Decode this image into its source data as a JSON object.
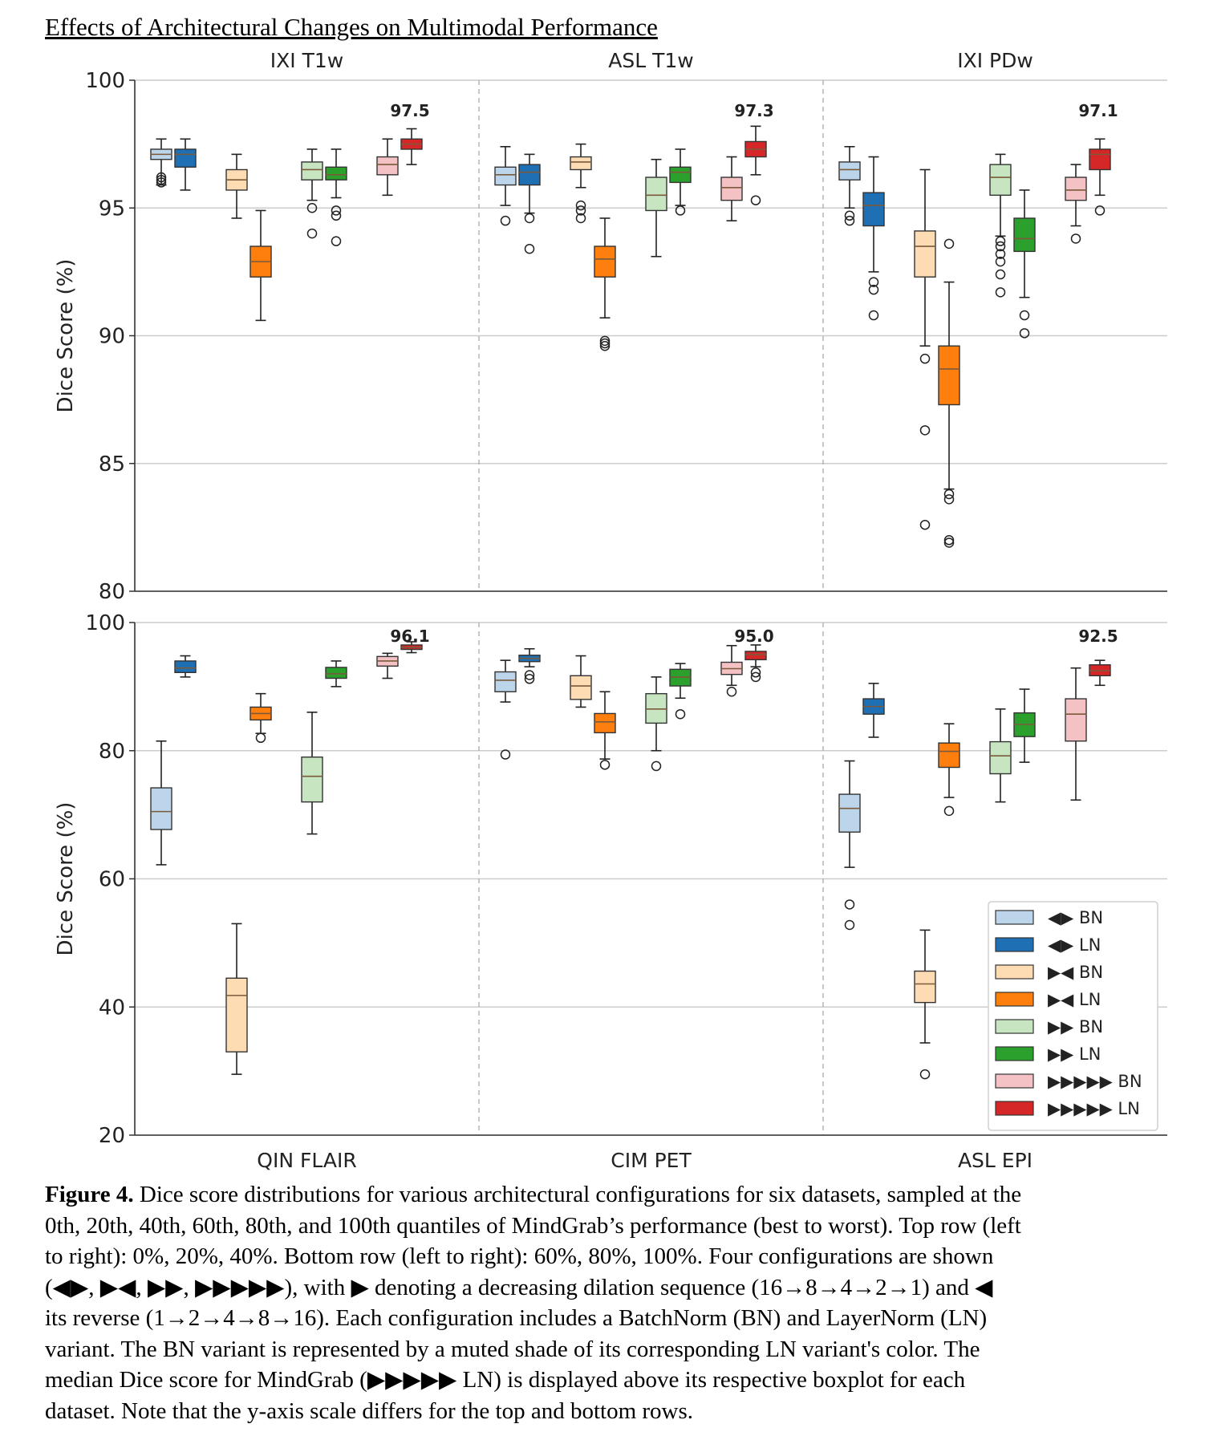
{
  "figure_title": "Effects of Architectural Changes on Multimodal Performance",
  "caption": {
    "label": "Figure 4.",
    "lines": [
      " Dice score distributions for various architectural configurations for six datasets, sampled at the",
      "0th, 20th, 40th, 60th, 80th, and 100th quantiles of MindGrab’s performance (best to worst). Top row (left",
      "to right): 0%, 20%, 40%. Bottom row (left to right): 60%, 80%, 100%. Four configurations are shown",
      "(◀▶, ▶◀, ▶▶, ▶▶▶▶▶), with ▶ denoting a decreasing dilation sequence (16→8→4→2→1) and ◀",
      "its reverse (1→2→4→8→16).  Each configuration includes a BatchNorm (BN) and LayerNorm (LN)",
      "variant. The BN variant is represented by a muted shade of its corresponding LN variant's color. The",
      "median Dice score for MindGrab (▶▶▶▶▶ LN) is displayed above its respective boxplot for each",
      "dataset. Note that the y-axis scale differs for the top and bottom rows."
    ]
  },
  "chart_data": [
    {
      "type": "box",
      "ylabel": "Dice Score (%)",
      "ylim": [
        80,
        100
      ],
      "yticks": [
        "80",
        "85",
        "90",
        "95",
        "100"
      ],
      "grid": true,
      "groups": [
        {
          "name": "IXI T1w",
          "median_label": "97.5",
          "boxes": [
            {
              "series": "◀▶ BN",
              "whislo": 95.9,
              "q1": 96.9,
              "med": 97.1,
              "q3": 97.3,
              "whishi": 97.7,
              "fliers": [
                96.0,
                96.1,
                96.2
              ]
            },
            {
              "series": "◀▶ LN",
              "whislo": 95.7,
              "q1": 96.6,
              "med": 97.1,
              "q3": 97.3,
              "whishi": 97.7,
              "fliers": []
            },
            {
              "series": "▶◀ BN",
              "whislo": 94.6,
              "q1": 95.7,
              "med": 96.1,
              "q3": 96.5,
              "whishi": 97.1,
              "fliers": []
            },
            {
              "series": "▶◀ LN",
              "whislo": 90.6,
              "q1": 92.3,
              "med": 92.9,
              "q3": 93.5,
              "whishi": 94.9,
              "fliers": []
            },
            {
              "series": "▶▶ BN",
              "whislo": 95.3,
              "q1": 96.1,
              "med": 96.5,
              "q3": 96.8,
              "whishi": 97.3,
              "fliers": [
                95.0,
                94.0
              ]
            },
            {
              "series": "▶▶ LN",
              "whislo": 95.4,
              "q1": 96.1,
              "med": 96.3,
              "q3": 96.6,
              "whishi": 97.3,
              "fliers": [
                94.9,
                94.7,
                93.7
              ]
            },
            {
              "series": "▶▶▶▶▶ BN",
              "whislo": 95.5,
              "q1": 96.3,
              "med": 96.7,
              "q3": 97.0,
              "whishi": 97.7,
              "fliers": []
            },
            {
              "series": "▶▶▶▶▶ LN",
              "whislo": 96.7,
              "q1": 97.3,
              "med": 97.5,
              "q3": 97.7,
              "whishi": 98.1,
              "fliers": []
            }
          ]
        },
        {
          "name": "ASL T1w",
          "median_label": "97.3",
          "boxes": [
            {
              "series": "◀▶ BN",
              "whislo": 95.1,
              "q1": 95.9,
              "med": 96.3,
              "q3": 96.6,
              "whishi": 97.4,
              "fliers": [
                94.5
              ]
            },
            {
              "series": "◀▶ LN",
              "whislo": 94.8,
              "q1": 95.9,
              "med": 96.4,
              "q3": 96.7,
              "whishi": 97.1,
              "fliers": [
                94.6,
                93.4
              ]
            },
            {
              "series": "▶◀ BN",
              "whislo": 95.8,
              "q1": 96.5,
              "med": 96.8,
              "q3": 97.0,
              "whishi": 97.5,
              "fliers": [
                95.1,
                94.9,
                94.6
              ]
            },
            {
              "series": "▶◀ LN",
              "whislo": 90.7,
              "q1": 92.3,
              "med": 93.0,
              "q3": 93.5,
              "whishi": 94.6,
              "fliers": [
                89.8,
                89.7,
                89.6
              ]
            },
            {
              "series": "▶▶ BN",
              "whislo": 93.1,
              "q1": 94.9,
              "med": 95.5,
              "q3": 96.2,
              "whishi": 96.9,
              "fliers": []
            },
            {
              "series": "▶▶ LN",
              "whislo": 95.1,
              "q1": 96.0,
              "med": 96.4,
              "q3": 96.6,
              "whishi": 97.3,
              "fliers": [
                94.9
              ]
            },
            {
              "series": "▶▶▶▶▶ BN",
              "whislo": 94.5,
              "q1": 95.3,
              "med": 95.8,
              "q3": 96.2,
              "whishi": 97.0,
              "fliers": []
            },
            {
              "series": "▶▶▶▶▶ LN",
              "whislo": 96.3,
              "q1": 97.0,
              "med": 97.3,
              "q3": 97.6,
              "whishi": 98.2,
              "fliers": [
                95.3
              ]
            }
          ]
        },
        {
          "name": "IXI PDw",
          "median_label": "97.1",
          "boxes": [
            {
              "series": "◀▶ BN",
              "whislo": 95.0,
              "q1": 96.1,
              "med": 96.5,
              "q3": 96.8,
              "whishi": 97.4,
              "fliers": [
                94.7,
                94.5
              ]
            },
            {
              "series": "◀▶ LN",
              "whislo": 92.5,
              "q1": 94.3,
              "med": 95.1,
              "q3": 95.6,
              "whishi": 97.0,
              "fliers": [
                92.1,
                91.8,
                90.8
              ]
            },
            {
              "series": "▶◀ BN",
              "whislo": 89.6,
              "q1": 92.3,
              "med": 93.5,
              "q3": 94.1,
              "whishi": 96.5,
              "fliers": [
                89.1,
                86.3,
                82.6
              ]
            },
            {
              "series": "▶◀ LN",
              "whislo": 84.0,
              "q1": 87.3,
              "med": 88.7,
              "q3": 89.6,
              "whishi": 92.1,
              "fliers": [
                93.6,
                83.8,
                83.6,
                82.0,
                81.9
              ]
            },
            {
              "series": "▶▶ BN",
              "whislo": 93.9,
              "q1": 95.5,
              "med": 96.2,
              "q3": 96.7,
              "whishi": 97.1,
              "fliers": [
                93.7,
                93.5,
                93.2,
                92.9,
                92.4,
                91.7
              ]
            },
            {
              "series": "▶▶ LN",
              "whislo": 91.5,
              "q1": 93.3,
              "med": 93.8,
              "q3": 94.6,
              "whishi": 95.7,
              "fliers": [
                90.8,
                90.1
              ]
            },
            {
              "series": "▶▶▶▶▶ BN",
              "whislo": 94.3,
              "q1": 95.3,
              "med": 95.7,
              "q3": 96.2,
              "whishi": 96.7,
              "fliers": [
                93.8
              ]
            },
            {
              "series": "▶▶▶▶▶ LN",
              "whislo": 95.5,
              "q1": 96.5,
              "med": 97.1,
              "q3": 97.3,
              "whishi": 97.7,
              "fliers": [
                94.9
              ]
            }
          ]
        }
      ]
    },
    {
      "type": "box",
      "ylabel": "Dice Score (%)",
      "ylim": [
        20,
        100
      ],
      "yticks": [
        "20",
        "40",
        "60",
        "80",
        "100"
      ],
      "grid": true,
      "legend_position": "bottom-right",
      "groups": [
        {
          "name": "QIN FLAIR",
          "median_label": "96.1",
          "boxes": [
            {
              "series": "◀▶ BN",
              "whislo": 62.2,
              "q1": 67.7,
              "med": 70.5,
              "q3": 74.2,
              "whishi": 81.5,
              "fliers": []
            },
            {
              "series": "◀▶ LN",
              "whislo": 91.5,
              "q1": 92.2,
              "med": 92.9,
              "q3": 94.0,
              "whishi": 94.8,
              "fliers": []
            },
            {
              "series": "▶◀ BN",
              "whislo": 29.5,
              "q1": 33.0,
              "med": 41.8,
              "q3": 44.5,
              "whishi": 53.0,
              "fliers": []
            },
            {
              "series": "▶◀ LN",
              "whislo": 82.7,
              "q1": 84.8,
              "med": 85.8,
              "q3": 86.8,
              "whishi": 88.9,
              "fliers": [
                82.0
              ]
            },
            {
              "series": "▶▶ BN",
              "whislo": 67.0,
              "q1": 72.0,
              "med": 76.0,
              "q3": 79.0,
              "whishi": 86.0,
              "fliers": []
            },
            {
              "series": "▶▶ LN",
              "whislo": 90.0,
              "q1": 91.3,
              "med": 92.0,
              "q3": 93.0,
              "whishi": 94.0,
              "fliers": []
            },
            {
              "series": "▶▶▶▶▶ BN",
              "whislo": 91.3,
              "q1": 93.2,
              "med": 94.0,
              "q3": 94.7,
              "whishi": 95.2,
              "fliers": []
            },
            {
              "series": "▶▶▶▶▶ LN",
              "whislo": 95.3,
              "q1": 95.8,
              "med": 96.1,
              "q3": 96.5,
              "whishi": 97.0,
              "fliers": []
            }
          ]
        },
        {
          "name": "CIM PET",
          "median_label": "95.0",
          "boxes": [
            {
              "series": "◀▶ BN",
              "whislo": 87.6,
              "q1": 89.2,
              "med": 91.0,
              "q3": 92.3,
              "whishi": 94.1,
              "fliers": [
                79.4
              ]
            },
            {
              "series": "◀▶ LN",
              "whislo": 93.1,
              "q1": 93.9,
              "med": 94.4,
              "q3": 94.9,
              "whishi": 95.9,
              "fliers": [
                91.8,
                91.2
              ]
            },
            {
              "series": "▶◀ BN",
              "whislo": 86.8,
              "q1": 88.0,
              "med": 90.1,
              "q3": 91.7,
              "whishi": 94.8,
              "fliers": []
            },
            {
              "series": "▶◀ LN",
              "whislo": 78.7,
              "q1": 82.8,
              "med": 84.5,
              "q3": 85.8,
              "whishi": 89.2,
              "fliers": [
                77.8
              ]
            },
            {
              "series": "▶▶ BN",
              "whislo": 80.0,
              "q1": 84.3,
              "med": 86.5,
              "q3": 88.9,
              "whishi": 91.5,
              "fliers": [
                77.6
              ]
            },
            {
              "series": "▶▶ LN",
              "whislo": 88.2,
              "q1": 90.1,
              "med": 91.5,
              "q3": 92.7,
              "whishi": 93.6,
              "fliers": [
                85.7
              ]
            },
            {
              "series": "▶▶▶▶▶ BN",
              "whislo": 90.2,
              "q1": 91.9,
              "med": 92.8,
              "q3": 93.8,
              "whishi": 96.4,
              "fliers": [
                89.2
              ]
            },
            {
              "series": "▶▶▶▶▶ LN",
              "whislo": 93.1,
              "q1": 94.2,
              "med": 95.0,
              "q3": 95.5,
              "whishi": 96.5,
              "fliers": [
                92.2,
                91.5
              ]
            }
          ]
        },
        {
          "name": "ASL EPI",
          "median_label": "92.5",
          "boxes": [
            {
              "series": "◀▶ BN",
              "whislo": 61.8,
              "q1": 67.3,
              "med": 71.0,
              "q3": 73.2,
              "whishi": 78.4,
              "fliers": [
                56.0,
                52.8
              ]
            },
            {
              "series": "◀▶ LN",
              "whislo": 82.1,
              "q1": 85.7,
              "med": 86.9,
              "q3": 88.1,
              "whishi": 90.5,
              "fliers": []
            },
            {
              "series": "▶◀ BN",
              "whislo": 34.4,
              "q1": 40.7,
              "med": 43.6,
              "q3": 45.6,
              "whishi": 52.0,
              "fliers": [
                29.5
              ]
            },
            {
              "series": "▶◀ LN",
              "whislo": 72.7,
              "q1": 77.4,
              "med": 79.9,
              "q3": 81.2,
              "whishi": 84.2,
              "fliers": [
                70.6
              ]
            },
            {
              "series": "▶▶ BN",
              "whislo": 72.0,
              "q1": 76.4,
              "med": 79.2,
              "q3": 81.4,
              "whishi": 86.5,
              "fliers": []
            },
            {
              "series": "▶▶ LN",
              "whislo": 78.2,
              "q1": 82.2,
              "med": 84.1,
              "q3": 85.9,
              "whishi": 89.6,
              "fliers": []
            },
            {
              "series": "▶▶▶▶▶ BN",
              "whislo": 72.3,
              "q1": 81.5,
              "med": 85.7,
              "q3": 88.1,
              "whishi": 92.9,
              "fliers": []
            },
            {
              "series": "▶▶▶▶▶ LN",
              "whislo": 90.2,
              "q1": 91.7,
              "med": 92.5,
              "q3": 93.4,
              "whishi": 94.1,
              "fliers": []
            }
          ]
        }
      ]
    }
  ],
  "legend": [
    {
      "label": "◀▶ BN",
      "color": "#bcd5ea"
    },
    {
      "label": "◀▶ LN",
      "color": "#1f6fb4"
    },
    {
      "label": "▶◀ BN",
      "color": "#fddcb3"
    },
    {
      "label": "▶◀ LN",
      "color": "#ff7f0e"
    },
    {
      "label": "▶▶ BN",
      "color": "#c7e5c0"
    },
    {
      "label": "▶▶ LN",
      "color": "#2ca02c"
    },
    {
      "label": "▶▶▶▶▶ BN",
      "color": "#f4c2c4"
    },
    {
      "label": "▶▶▶▶▶ LN",
      "color": "#d62728"
    }
  ],
  "colors": {
    "◀▶ BN": "#bcd5ea",
    "◀▶ LN": "#1f6fb4",
    "▶◀ BN": "#fddcb3",
    "▶◀ LN": "#ff7f0e",
    "▶▶ BN": "#c7e5c0",
    "▶▶ LN": "#2ca02c",
    "▶▶▶▶▶ BN": "#f4c2c4",
    "▶▶▶▶▶ LN": "#d62728",
    "median_line": "#7a5a3a",
    "grid": "#cccccc",
    "axis": "#333333"
  }
}
